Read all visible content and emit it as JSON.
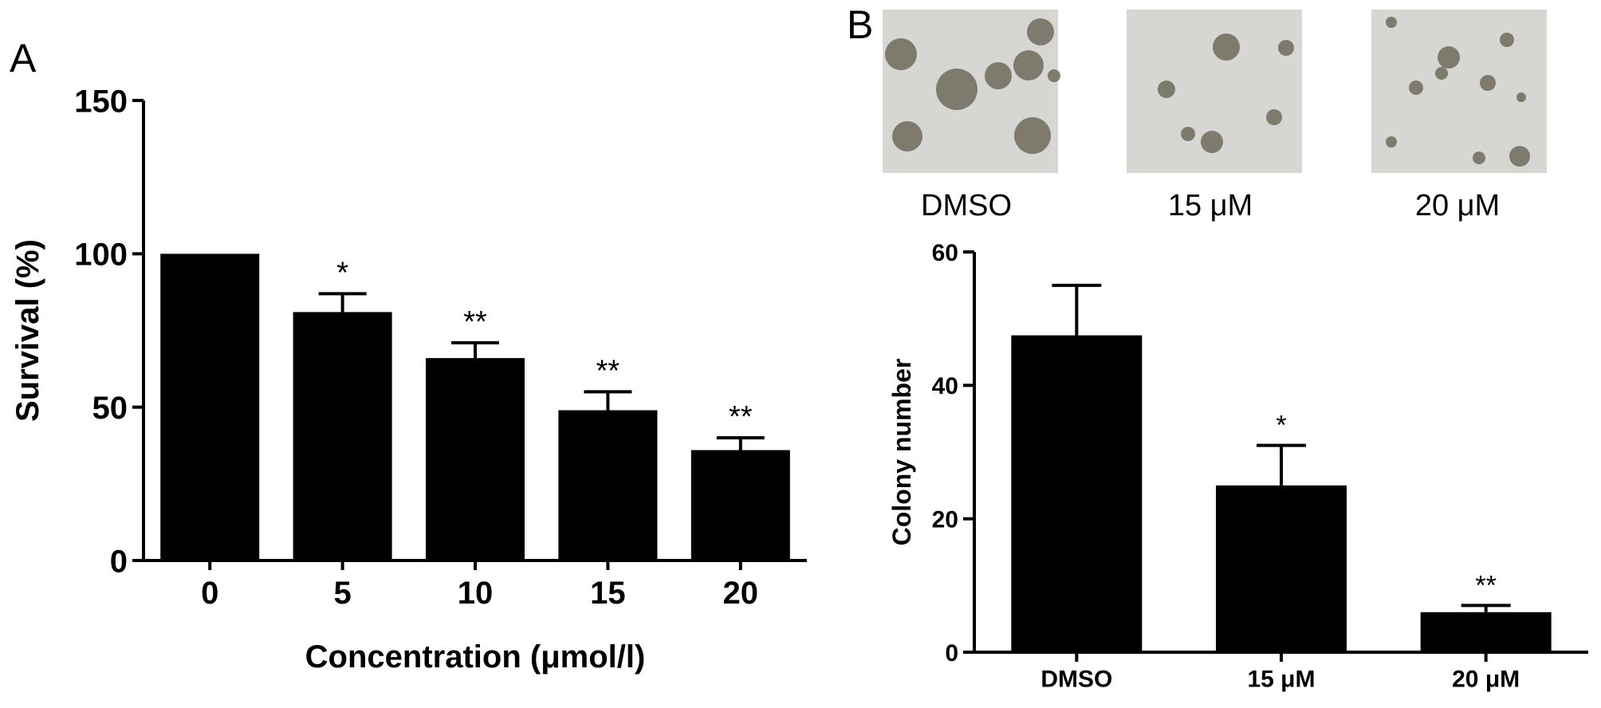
{
  "panels": {
    "a_label": "A",
    "b_label": "B"
  },
  "micrographs": [
    {
      "caption": "DMSO"
    },
    {
      "caption": "15 μM"
    },
    {
      "caption": "20 μM"
    }
  ],
  "colors": {
    "bar": "#000000",
    "background": "#ffffff",
    "micrograph_bg": "#d6d6d2",
    "colony": "#6f6a5c"
  },
  "chart_data": [
    {
      "type": "bar",
      "panel": "A",
      "categories": [
        "0",
        "5",
        "10",
        "15",
        "20"
      ],
      "values": [
        100,
        81,
        66,
        49,
        36
      ],
      "errors": [
        0,
        6,
        5,
        6,
        4
      ],
      "significance": [
        "",
        "*",
        "**",
        "**",
        "**"
      ],
      "xlabel": "Concentration (μmol/l)",
      "ylabel": "Survival (%)",
      "ylim": [
        0,
        150
      ],
      "yticks": [
        "0",
        "50",
        "100",
        "150"
      ],
      "grid": false,
      "legend": "none"
    },
    {
      "type": "bar",
      "panel": "B",
      "categories": [
        "DMSO",
        "15 μM",
        "20 μM"
      ],
      "values": [
        47.5,
        25,
        6
      ],
      "errors": [
        7.5,
        6,
        1
      ],
      "significance": [
        "",
        "*",
        "**"
      ],
      "xlabel": "",
      "ylabel": "Colony number",
      "ylim": [
        0,
        60
      ],
      "yticks": [
        "0",
        "20",
        "40",
        "60"
      ],
      "grid": false,
      "legend": "none"
    }
  ]
}
